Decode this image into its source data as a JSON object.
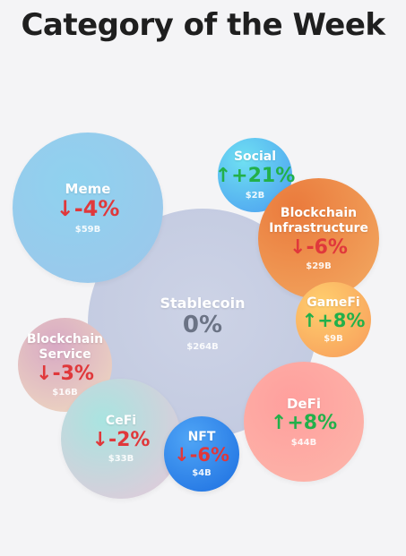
{
  "title": "Category of the Week",
  "bubbles": {
    "stablecoin": {
      "name": "Stablecoin",
      "change": "0%",
      "cap": "$264B",
      "direction": "flat"
    },
    "meme": {
      "name": "Meme",
      "change": "↓-4%",
      "cap": "$59B",
      "direction": "down"
    },
    "social": {
      "name": "Social",
      "change": "↑+21%",
      "cap": "$2B",
      "direction": "up"
    },
    "blockchain_infrastructure": {
      "name_line1": "Blockchain",
      "name_line2": "Infrastructure",
      "change": "↓-6%",
      "cap": "$29B",
      "direction": "down"
    },
    "gamefi": {
      "name": "GameFi",
      "change": "↑+8%",
      "cap": "$9B",
      "direction": "up"
    },
    "blockchain_service": {
      "name_line1": "Blockchain",
      "name_line2": "Service",
      "change": "↓-3%",
      "cap": "$16B",
      "direction": "down"
    },
    "cefi": {
      "name": "CeFi",
      "change": "↓-2%",
      "cap": "$33B",
      "direction": "down"
    },
    "nft": {
      "name": "NFT",
      "change": "↓-6%",
      "cap": "$4B",
      "direction": "down"
    },
    "defi": {
      "name": "DeFi",
      "change": "↑+8%",
      "cap": "$44B",
      "direction": "up"
    }
  },
  "colors": {
    "down": "#e0383b",
    "up": "#22b04a",
    "flat": "#6b7385"
  }
}
